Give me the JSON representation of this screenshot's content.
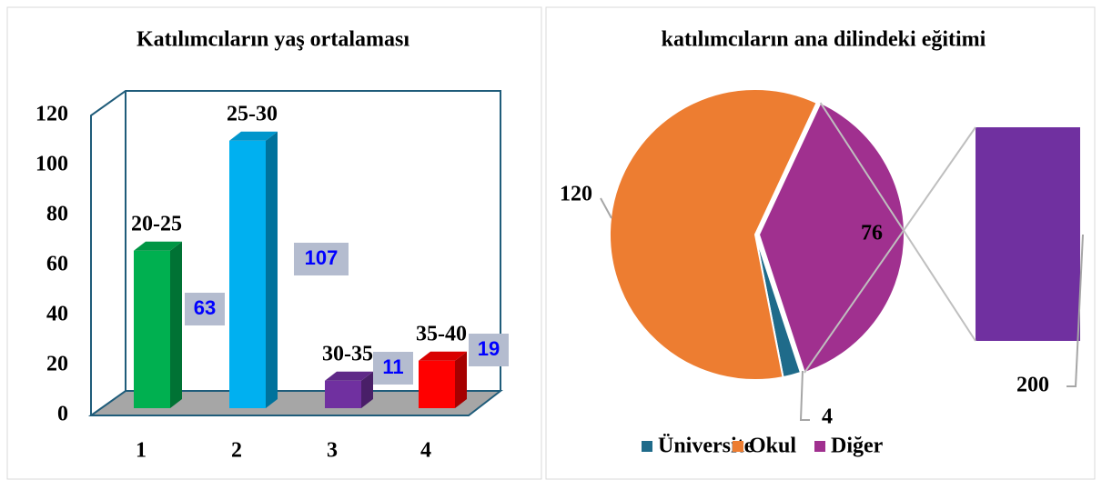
{
  "chart_data": [
    {
      "type": "bar3d",
      "title": "Katılımcıların yaş ortalaması",
      "categories": [
        "1",
        "2",
        "3",
        "4"
      ],
      "values": [
        63,
        107,
        11,
        19
      ],
      "bar_labels": [
        "20-25",
        "25-30",
        "30-35",
        "35-40"
      ],
      "colors": [
        "#00b050",
        "#00b0f0",
        "#7030a0",
        "#ff0000"
      ],
      "ylim": [
        0,
        120
      ],
      "yticks": [
        0,
        20,
        40,
        60,
        80,
        100,
        120
      ]
    },
    {
      "type": "bar_of_pie",
      "title": "katılımcıların ana dilindeki eğitimi",
      "categories": [
        "Üniversite",
        "Okul",
        "Diğer"
      ],
      "values": [
        4,
        120,
        76
      ],
      "colors": [
        "#1f6b8a",
        "#ed7d31",
        "#a0308f"
      ],
      "bar_value": 200,
      "bar_color": "#7030a0",
      "legend": "bottom"
    }
  ]
}
